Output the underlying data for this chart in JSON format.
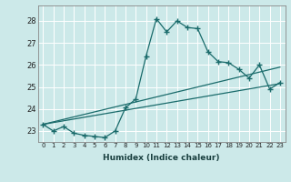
{
  "xlabel": "Humidex (Indice chaleur)",
  "bg_color": "#cce9e9",
  "line_color": "#1a6b6b",
  "grid_color": "#ffffff",
  "xlim": [
    -0.5,
    23.5
  ],
  "ylim": [
    22.5,
    28.7
  ],
  "yticks": [
    23,
    24,
    25,
    26,
    27,
    28
  ],
  "xticks": [
    0,
    1,
    2,
    3,
    4,
    5,
    6,
    7,
    8,
    9,
    10,
    11,
    12,
    13,
    14,
    15,
    16,
    17,
    18,
    19,
    20,
    21,
    22,
    23
  ],
  "line1_x": [
    0,
    1,
    2,
    3,
    4,
    5,
    6,
    7,
    8,
    9,
    10,
    11,
    12,
    13,
    14,
    15,
    16,
    17,
    18,
    19,
    20,
    21,
    22,
    23
  ],
  "line1_y": [
    23.3,
    23.0,
    23.2,
    22.9,
    22.8,
    22.75,
    22.7,
    23.0,
    24.05,
    24.45,
    26.4,
    28.1,
    27.5,
    28.0,
    27.7,
    27.65,
    26.6,
    26.15,
    26.1,
    25.8,
    25.4,
    26.0,
    24.9,
    25.2
  ],
  "line2_x": [
    0,
    23
  ],
  "line2_y": [
    23.3,
    25.15
  ],
  "line3_x": [
    0,
    23
  ],
  "line3_y": [
    23.3,
    25.9
  ]
}
